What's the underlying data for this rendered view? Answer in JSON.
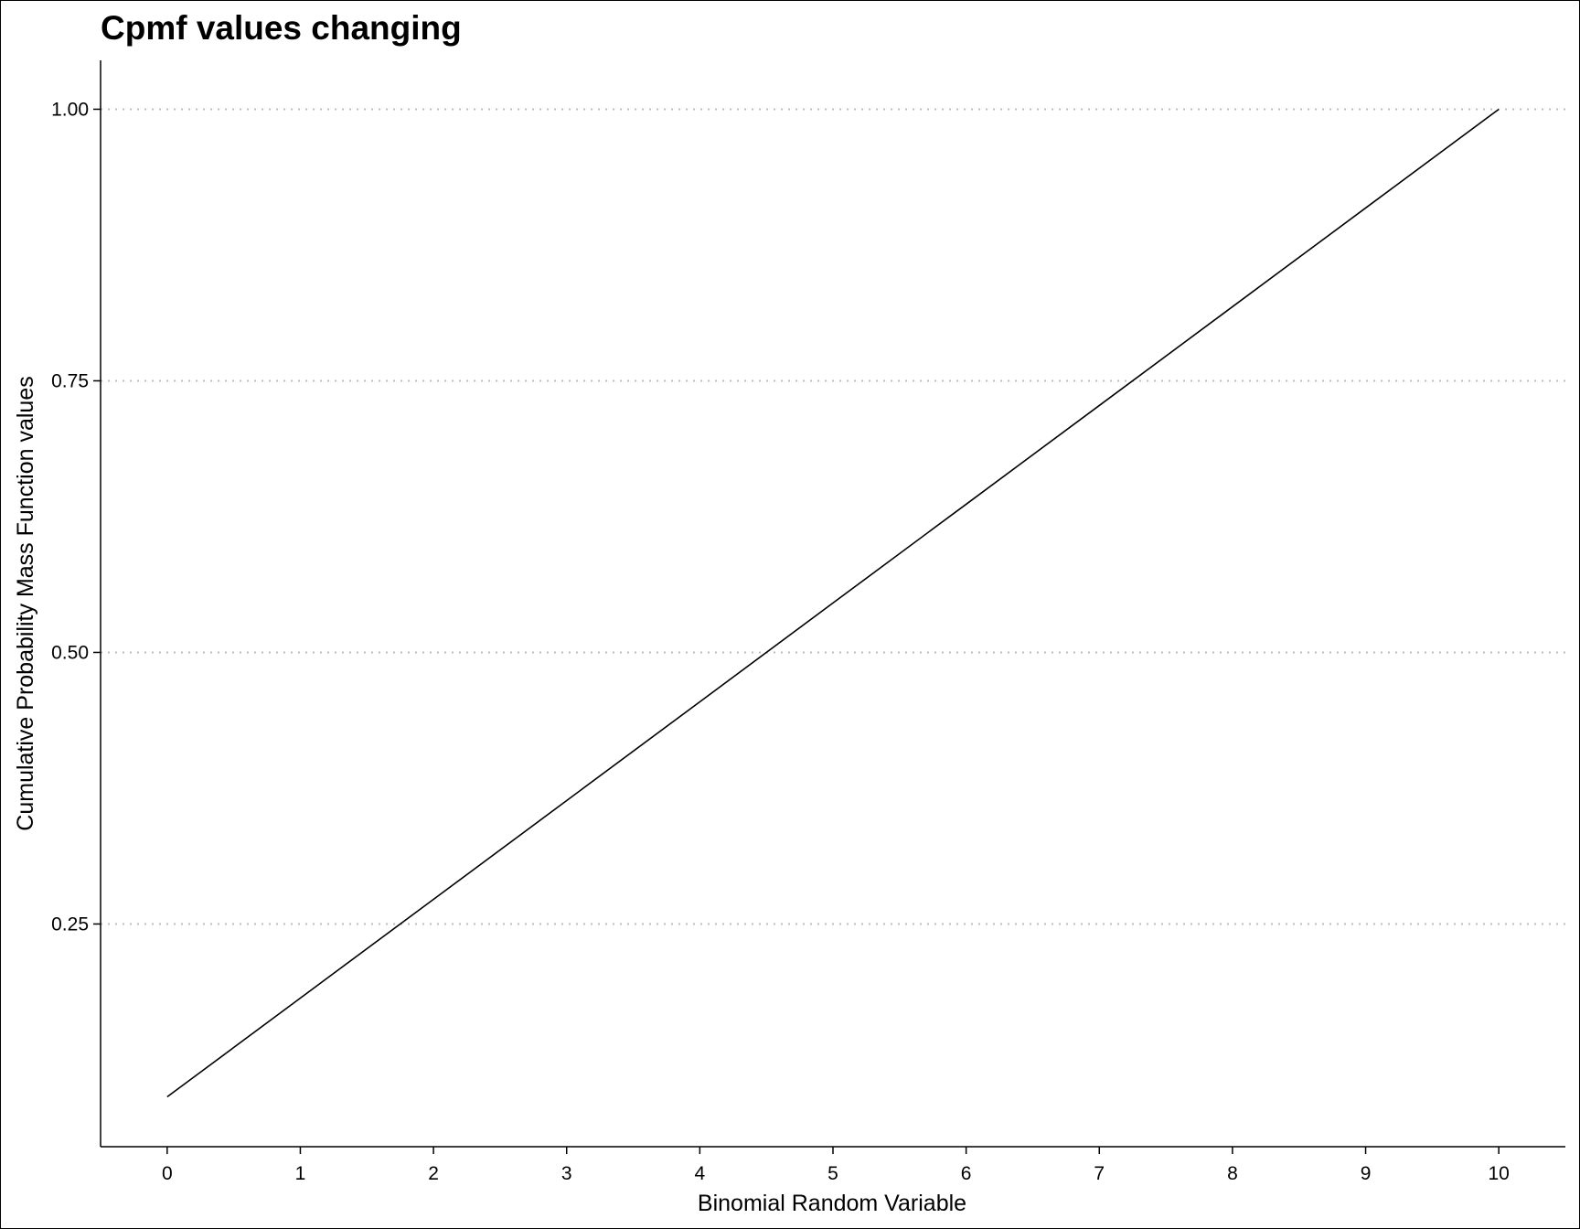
{
  "chart_data": {
    "type": "line",
    "title": "Cpmf values changing",
    "xlabel": "Binomial Random Variable",
    "ylabel": "Cumulative Probability Mass Function values",
    "x": [
      0,
      1,
      2,
      3,
      4,
      5,
      6,
      7,
      8,
      9,
      10
    ],
    "y": [
      0.0909,
      0.1818,
      0.2727,
      0.3636,
      0.4545,
      0.5455,
      0.6364,
      0.7273,
      0.8182,
      0.9091,
      1.0
    ],
    "xlim": [
      -0.5,
      10.5
    ],
    "ylim": [
      0.045,
      1.045
    ],
    "x_ticks": [
      "0",
      "1",
      "2",
      "3",
      "4",
      "5",
      "6",
      "7",
      "8",
      "9",
      "10"
    ],
    "y_ticks": [
      "0.25",
      "0.50",
      "0.75",
      "1.00"
    ],
    "y_tick_values": [
      0.25,
      0.5,
      0.75,
      1.0
    ],
    "grid": "horizontal-dotted",
    "line_color": "#000000",
    "grid_color": "#bdbdbd"
  }
}
